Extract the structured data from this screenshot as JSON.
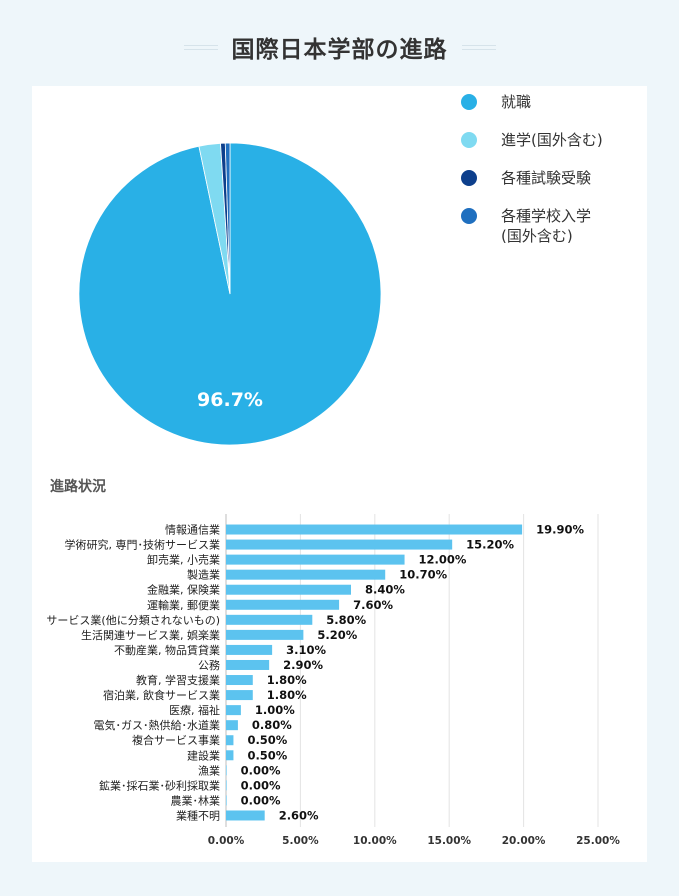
{
  "page": {
    "title": "国際日本学部の進路",
    "section_title": "進路状況"
  },
  "legend": [
    {
      "label": "就職",
      "color": "#29b0e6"
    },
    {
      "label": "進学(国外含む)",
      "color": "#7fdaf1"
    },
    {
      "label": "各種試験受験",
      "color": "#0d3f8c"
    },
    {
      "label": "各種学校入学\n(国外含む)",
      "color": "#1f6fbf"
    }
  ],
  "chart_data": [
    {
      "type": "pie",
      "slices": [
        {
          "label": "就職",
          "value": 96.7,
          "color": "#29b0e6"
        },
        {
          "label": "進学(国外含む)",
          "value": 2.3,
          "color": "#7fdaf1"
        },
        {
          "label": "各種試験受験",
          "value": 0.5,
          "color": "#0d3f8c"
        },
        {
          "label": "各種学校入学(国外含む)",
          "value": 0.5,
          "color": "#1f6fbf"
        }
      ],
      "data_labels": [
        "96.7%"
      ]
    },
    {
      "type": "bar",
      "orientation": "horizontal",
      "categories": [
        "情報通信業",
        "学術研究, 専門･技術サービス業",
        "卸売業, 小売業",
        "製造業",
        "金融業, 保険業",
        "運輸業, 郵便業",
        "サービス業(他に分類されないもの)",
        "生活関連サービス業, 娯楽業",
        "不動産業, 物品賃貸業",
        "公務",
        "教育, 学習支援業",
        "宿泊業, 飲食サービス業",
        "医療, 福祉",
        "電気･ガス･熱供給･水道業",
        "複合サービス事業",
        "建設業",
        "漁業",
        "鉱業･採石業･砂利採取業",
        "農業･林業",
        "業種不明"
      ],
      "values": [
        19.9,
        15.2,
        12.0,
        10.7,
        8.4,
        7.6,
        5.8,
        5.2,
        3.1,
        2.9,
        1.8,
        1.8,
        1.0,
        0.8,
        0.5,
        0.5,
        0.0,
        0.0,
        0.0,
        2.6
      ],
      "data_labels": [
        "19.90%",
        "15.20%",
        "12.00%",
        "10.70%",
        "8.40%",
        "7.60%",
        "5.80%",
        "5.20%",
        "3.10%",
        "2.90%",
        "1.80%",
        "1.80%",
        "1.00%",
        "0.80%",
        "0.50%",
        "0.50%",
        "0.00%",
        "0.00%",
        "0.00%",
        "2.60%"
      ],
      "xlim": [
        0,
        25
      ],
      "xticks": [
        "0.00%",
        "5.00%",
        "10.00%",
        "15.00%",
        "20.00%",
        "25.00%"
      ],
      "grid": true,
      "color": "#5cc3ef"
    }
  ]
}
